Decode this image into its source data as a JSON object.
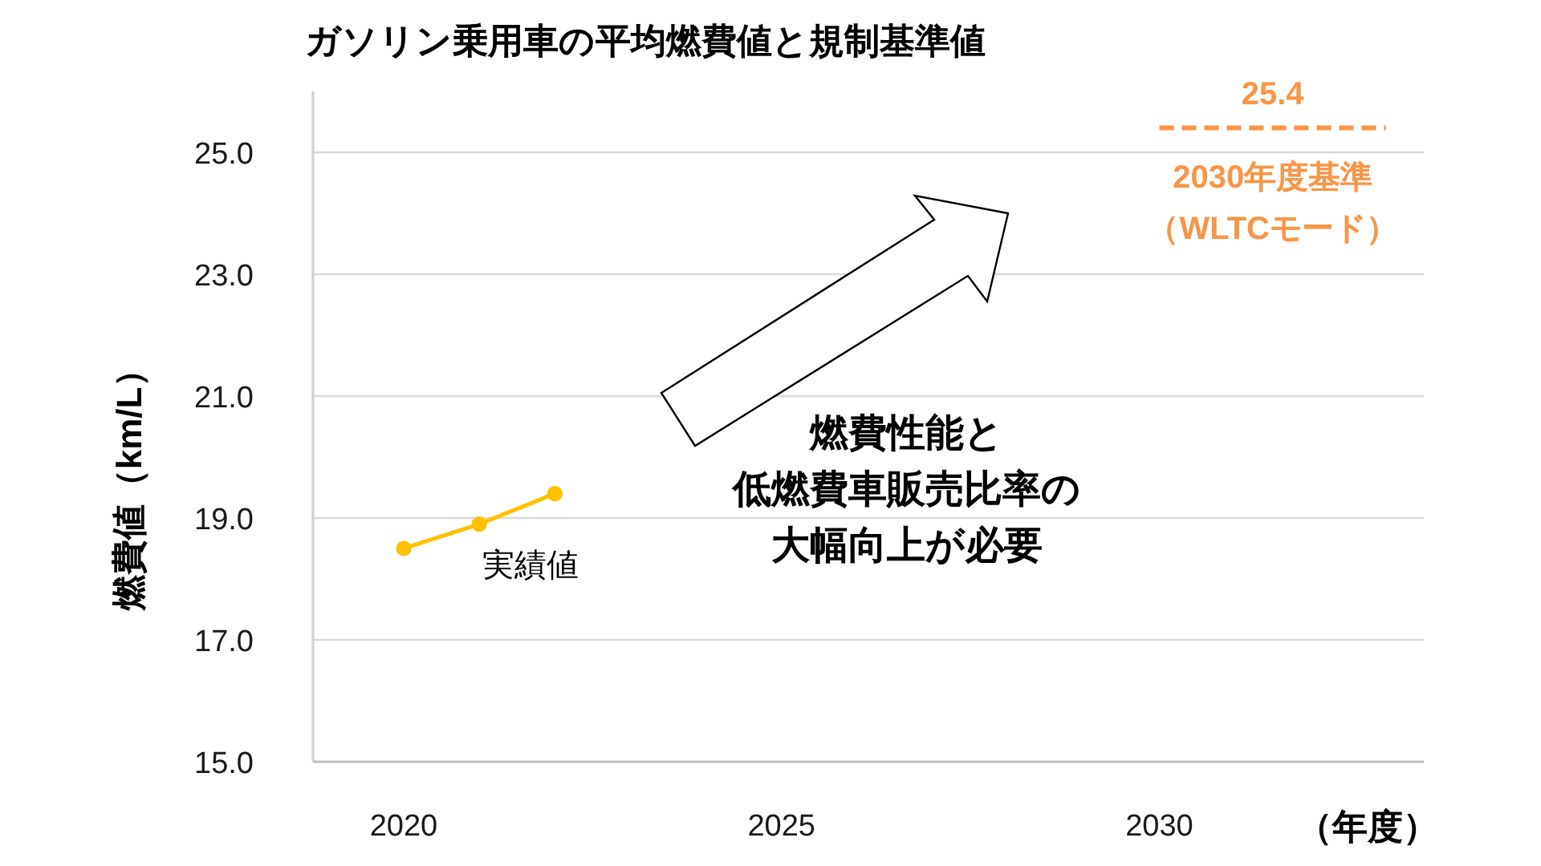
{
  "chart_data": {
    "type": "line",
    "title": "ガソリン乗用車の平均燃費値と規制基準値",
    "xlabel": "（年度）",
    "ylabel": "燃費値（km/L）",
    "xlim": [
      2018.8,
      2033.5
    ],
    "ylim": [
      15,
      26
    ],
    "xticks": [
      2020,
      2025,
      2030
    ],
    "yticks": [
      {
        "value": 15,
        "label": "15.0"
      },
      {
        "value": 17,
        "label": "17.0"
      },
      {
        "value": 19,
        "label": "19.0"
      },
      {
        "value": 21,
        "label": "21.0"
      },
      {
        "value": 23,
        "label": "23.0"
      },
      {
        "value": 25,
        "label": "25.0"
      }
    ],
    "grid": "y",
    "series": [
      {
        "name": "実績値",
        "color": "#ffc000",
        "x": [
          2020,
          2021,
          2022
        ],
        "values": [
          18.5,
          18.9,
          19.4
        ],
        "marker": "circle",
        "line_style": "solid"
      },
      {
        "name": "2030年度基準（WLTCモード）",
        "color": "#f79646",
        "x": [
          2030,
          2033
        ],
        "values": [
          25.4,
          25.4
        ],
        "marker": "none",
        "line_style": "dashed"
      }
    ],
    "annotations": [
      {
        "text": "25.4",
        "x": 2031.5,
        "y": 25.4
      },
      "燃費性能と低燃費車販売比率の大幅向上が必要"
    ]
  }
}
